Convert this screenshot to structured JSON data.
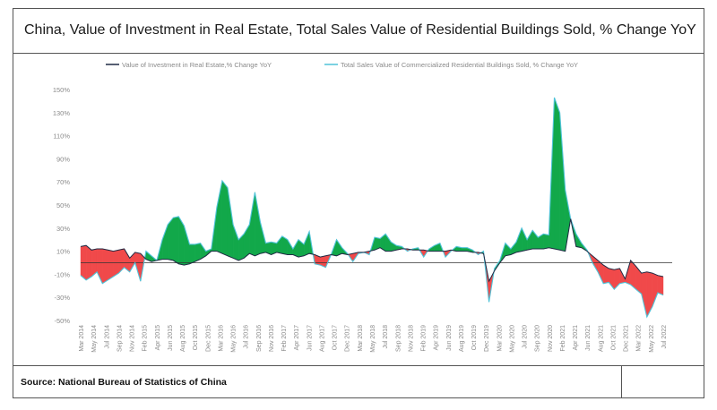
{
  "title": "China, Value of Investment in Real Estate, Total Sales Value of Residential Buildings Sold, % Change YoY",
  "source": "Source: National Bureau of Statistics of China",
  "colors": {
    "investment_line": "#1f2a44",
    "sales_line": "#4fc3d8",
    "positive_fill": "#12a84a",
    "negative_fill": "#f0494a",
    "axis_text": "#8a8a8a"
  },
  "chart_data": {
    "type": "area",
    "title": "China, Value of Investment in Real Estate, Total Sales Value of Residential Buildings Sold, % Change YoY",
    "xlabel": "",
    "ylabel": "",
    "ylim": [
      -50,
      150
    ],
    "yticks": [
      150,
      130,
      110,
      90,
      70,
      50,
      30,
      10,
      -10,
      -30,
      -50
    ],
    "ytick_labels": [
      "150%",
      "130%",
      "110%",
      "90%",
      "70%",
      "50%",
      "30%",
      "10%",
      "-10%",
      "-30%",
      "-50%"
    ],
    "xtick_labels": [
      "Mar 2014",
      "May 2014",
      "Jul 2014",
      "Sep 2014",
      "Nov 2014",
      "Feb 2015",
      "Apr 2015",
      "Jun 2015",
      "Aug 2015",
      "Oct 2015",
      "Dec 2015",
      "Mar 2016",
      "May 2016",
      "Jul 2016",
      "Sep 2016",
      "Nov 2016",
      "Feb 2017",
      "Apr 2017",
      "Jun 2017",
      "Aug 2017",
      "Oct 2017",
      "Dec 2017",
      "Mar 2018",
      "May 2018",
      "Jul 2018",
      "Sep 2018",
      "Nov 2018",
      "Feb 2019",
      "Apr 2019",
      "Jun 2019",
      "Aug 2019",
      "Oct 2019",
      "Dec 2019",
      "Mar 2020",
      "May 2020",
      "Jul 2020",
      "Sep 2020",
      "Nov 2020",
      "Feb 2021",
      "Apr 2021",
      "Jun 2021",
      "Aug 2021",
      "Oct 2021",
      "Dec 2021",
      "Mar 2022",
      "May 2022",
      "Jul 2022"
    ],
    "legend_position": "top-center",
    "grid": false,
    "series": [
      {
        "name": "Value of Investment in Real Estate,% Change YoY",
        "values": [
          14,
          15,
          11,
          12,
          12,
          11,
          10,
          11,
          12,
          4,
          9,
          8,
          3,
          1,
          2,
          3,
          3,
          2,
          -1,
          -2,
          -1,
          1,
          3,
          6,
          10,
          10,
          8,
          6,
          4,
          2,
          4,
          8,
          6,
          8,
          9,
          7,
          9,
          8,
          7,
          7,
          5,
          6,
          8,
          7,
          5,
          6,
          7,
          6,
          8,
          7,
          8,
          9,
          9,
          10,
          11,
          13,
          10,
          10,
          11,
          12,
          12,
          11,
          11,
          11,
          10,
          10,
          10,
          10,
          11,
          10,
          10,
          10,
          9,
          9,
          8,
          -16,
          -7,
          0,
          6,
          7,
          9,
          10,
          11,
          12,
          12,
          12,
          13,
          12,
          11,
          10,
          38,
          14,
          13,
          10,
          6,
          2,
          -2,
          -5,
          -6,
          -5,
          -14,
          2,
          -3,
          -9,
          -8,
          -9,
          -11,
          -12
        ]
      },
      {
        "name": "Total Sales Value of Commercialized Residential Buildings Sold, % Change YoY",
        "values": [
          -11,
          -15,
          -12,
          -8,
          -18,
          -15,
          -12,
          -9,
          -4,
          -8,
          0,
          -16,
          10,
          6,
          2,
          20,
          33,
          39,
          40,
          32,
          16,
          16,
          17,
          10,
          12,
          48,
          71,
          65,
          33,
          20,
          25,
          33,
          61,
          35,
          17,
          18,
          17,
          23,
          20,
          12,
          20,
          16,
          27,
          -1,
          -2,
          -4,
          7,
          20,
          13,
          8,
          1,
          8,
          9,
          7,
          22,
          21,
          25,
          18,
          15,
          14,
          10,
          12,
          13,
          5,
          12,
          15,
          17,
          5,
          10,
          14,
          13,
          13,
          11,
          7,
          10,
          -34,
          -5,
          2,
          17,
          12,
          18,
          30,
          20,
          28,
          22,
          25,
          24,
          143,
          130,
          63,
          38,
          25,
          17,
          11,
          0,
          -8,
          -18,
          -17,
          -23,
          -18,
          -17,
          -19,
          -23,
          -27,
          -47,
          -38,
          -26,
          -28
        ]
      }
    ]
  }
}
